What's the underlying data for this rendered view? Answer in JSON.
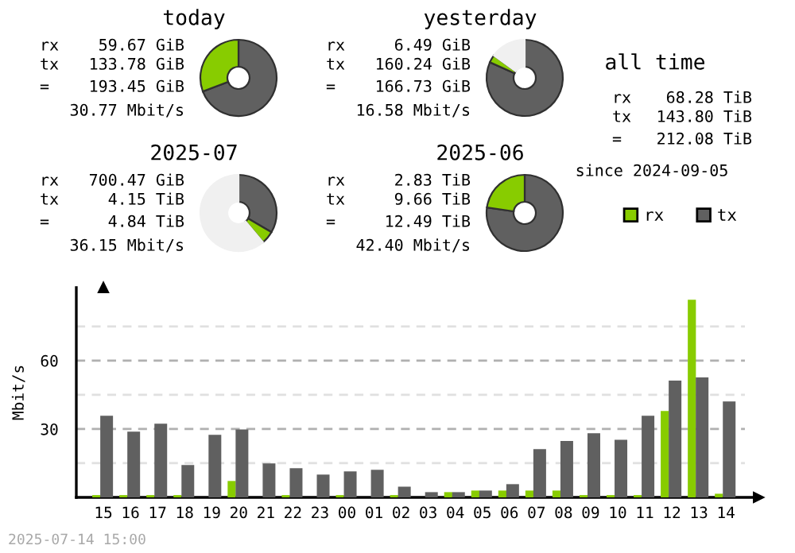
{
  "chart_data": [
    {
      "type": "donut",
      "title": "today",
      "categories": [
        null,
        null
      ],
      "values": [
        69.2,
        30.8
      ],
      "colors": [
        "#606060",
        "#88cc00"
      ],
      "annotations": [
        "rx",
        "59.67 GiB",
        "tx",
        "133.78 GiB",
        "=",
        "193.45 GiB",
        "30.77 Mbit/s"
      ]
    },
    {
      "type": "donut",
      "title": "yesterday",
      "categories": [
        null,
        null,
        null
      ],
      "values": [
        81.7,
        3.3,
        15.0
      ],
      "colors": [
        "#606060",
        "#88cc00",
        "#f0f0f0"
      ],
      "annotations": [
        "rx",
        "6.49 GiB",
        "tx",
        "160.24 GiB",
        "=",
        "166.73 GiB",
        "16.58 Mbit/s"
      ]
    },
    {
      "type": "donut",
      "title": "2025-07",
      "categories": [
        null,
        null,
        null
      ],
      "values": [
        33.4,
        5.5,
        61.1
      ],
      "colors": [
        "#606060",
        "#88cc00",
        "#f0f0f0"
      ],
      "annotations": [
        "rx",
        "700.47 GiB",
        "tx",
        "4.15 TiB",
        "=",
        "4.84 TiB",
        "36.15 Mbit/s"
      ]
    },
    {
      "type": "donut",
      "title": "2025-06",
      "categories": [
        null,
        null
      ],
      "values": [
        77.3,
        22.7
      ],
      "colors": [
        "#606060",
        "#88cc00"
      ],
      "annotations": [
        "rx",
        "2.83 TiB",
        "tx",
        "9.66 TiB",
        "=",
        "12.49 TiB",
        "42.40 Mbit/s"
      ]
    },
    {
      "type": "other",
      "title": "all time",
      "annotations": [
        "rx",
        "68.28 TiB",
        "tx",
        "143.80 TiB",
        "=",
        "212.08 TiB",
        "since 2024-09-05"
      ]
    },
    {
      "type": "bar",
      "ylabel": "Mbit/s",
      "categories": [
        "15",
        "16",
        "17",
        "18",
        "19",
        "20",
        "21",
        "22",
        "23",
        "00",
        "01",
        "02",
        "03",
        "04",
        "05",
        "06",
        "07",
        "08",
        "09",
        "10",
        "11",
        "12",
        "13",
        "14"
      ],
      "series": [
        {
          "name": "rx",
          "color": "#88cc00",
          "values": [
            1,
            1,
            1,
            1,
            0,
            7.2,
            0,
            1,
            0,
            1,
            0,
            1,
            0,
            2.3,
            3.0,
            3.0,
            3.0,
            3.0,
            1,
            1,
            1,
            37.9,
            86.7,
            1.6
          ]
        },
        {
          "name": "tx",
          "color": "#606060",
          "values": [
            35.8,
            28.8,
            32.3,
            14.2,
            27.4,
            29.8,
            14.9,
            12.8,
            10.0,
            11.4,
            12.1,
            4.7,
            2.3,
            2.3,
            3.0,
            5.8,
            21.2,
            24.7,
            28.1,
            25.3,
            35.8,
            51.2,
            52.6,
            42.1
          ]
        }
      ],
      "ylim": [
        0,
        92
      ],
      "yticks": [
        {
          "value": 15,
          "label": null
        },
        30,
        {
          "value": 45,
          "label": null
        },
        60,
        {
          "value": 75,
          "label": null
        }
      ],
      "grid": "y",
      "legend": "top right",
      "annotations": [
        "2025-07-14 15:00"
      ]
    }
  ]
}
